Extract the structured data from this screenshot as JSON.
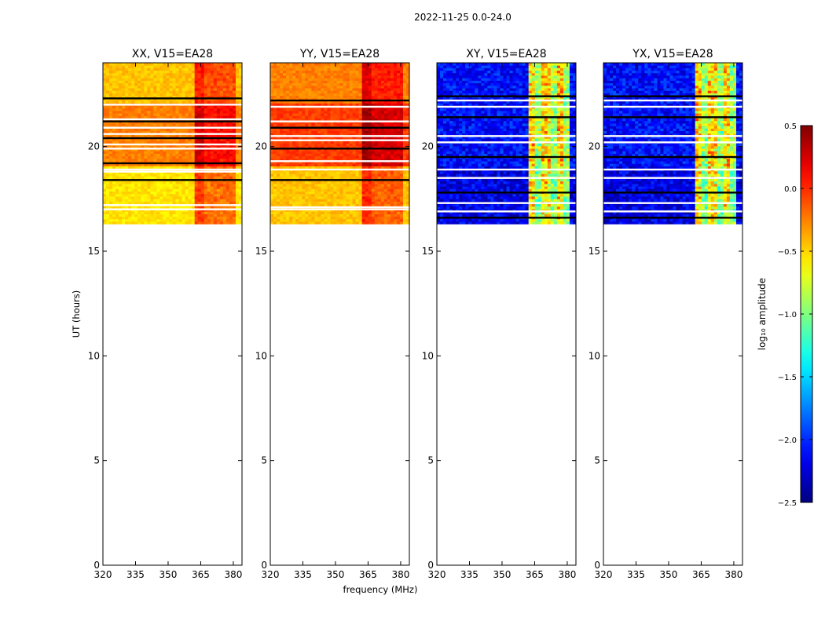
{
  "chart_data": {
    "type": "heatmap",
    "suptitle": "2022-11-25 0.0-24.0",
    "xlabel": "frequency (MHz)",
    "ylabel": "UT (hours)",
    "xlim": [
      320,
      384
    ],
    "ylim": [
      0,
      24
    ],
    "xticks": [
      320,
      335,
      350,
      365,
      380
    ],
    "yticks": [
      0,
      5,
      10,
      15,
      20
    ],
    "data_extent_hours": [
      16.3,
      24.0
    ],
    "colorbar": {
      "label": "log₁₀ amplitude",
      "range": [
        -2.5,
        0.5
      ],
      "ticks": [
        "0.5",
        "0.0",
        "−0.5",
        "−1.0",
        "−1.5",
        "−2.0",
        "−2.5"
      ],
      "colormap": "jet"
    },
    "panels": [
      {
        "title": "XX, V15=EA28",
        "polarization": "XX",
        "base_level": -0.45,
        "early_level": -0.55,
        "band_boost": 0.35,
        "flagged_hours": [
          22.3,
          22.0,
          21.3,
          21.2,
          20.9,
          20.6,
          20.4,
          20.1,
          19.9,
          19.2,
          18.9,
          18.8,
          18.4,
          17.2,
          17.0
        ]
      },
      {
        "title": "YY, V15=EA28",
        "polarization": "YY",
        "base_level": -0.25,
        "early_level": -0.45,
        "band_boost": 0.3,
        "flagged_hours": [
          22.2,
          21.9,
          21.2,
          20.9,
          20.5,
          20.3,
          19.9,
          19.3,
          18.9,
          18.4,
          17.1,
          17.0
        ]
      },
      {
        "title": "XY, V15=EA28",
        "polarization": "XY",
        "base_level": -2.1,
        "early_level": -2.2,
        "band_boost": 1.6,
        "flagged_hours": [
          22.4,
          22.2,
          21.9,
          21.4,
          20.5,
          20.2,
          19.5,
          18.9,
          18.5,
          17.8,
          17.3,
          16.9,
          16.6
        ]
      },
      {
        "title": "YX, V15=EA28",
        "polarization": "YX",
        "base_level": -2.1,
        "early_level": -2.2,
        "band_boost": 1.6,
        "flagged_hours": [
          22.4,
          22.2,
          21.9,
          21.4,
          20.5,
          20.2,
          19.5,
          18.9,
          18.5,
          17.8,
          17.3,
          16.9,
          16.6
        ]
      }
    ]
  }
}
